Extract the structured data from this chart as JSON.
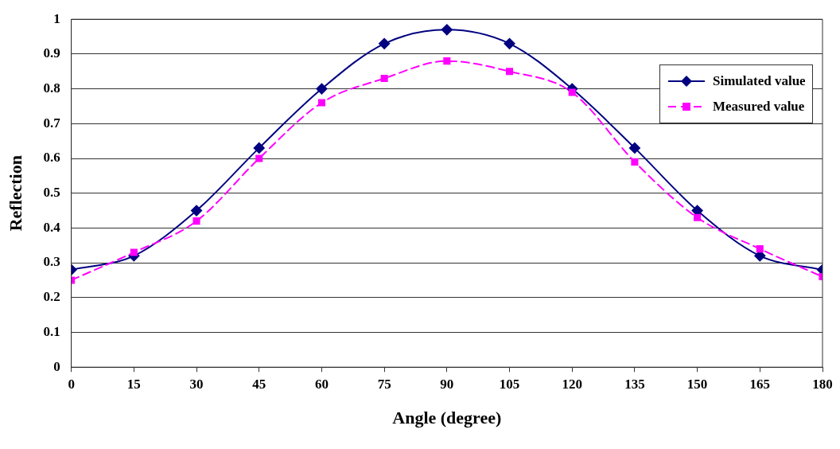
{
  "chart_data": {
    "type": "line",
    "xlabel": "Angle (degree)",
    "ylabel": "Reflection",
    "x": [
      0,
      15,
      30,
      45,
      60,
      75,
      90,
      105,
      120,
      135,
      150,
      165,
      180
    ],
    "xlim": [
      0,
      180
    ],
    "xticks": [
      0,
      15,
      30,
      45,
      60,
      75,
      90,
      105,
      120,
      135,
      150,
      165,
      180
    ],
    "ylim": [
      0,
      1
    ],
    "yticks": [
      0,
      0.1,
      0.2,
      0.3,
      0.4,
      0.5,
      0.6,
      0.7,
      0.8,
      0.9,
      1
    ],
    "grid": "y",
    "legend": "top right",
    "series": [
      {
        "name": "Simulated value",
        "color": "#000080",
        "marker": "diamond",
        "line_style": "solid",
        "values": [
          0.28,
          0.32,
          0.45,
          0.63,
          0.8,
          0.93,
          0.97,
          0.93,
          0.8,
          0.63,
          0.45,
          0.32,
          0.28
        ]
      },
      {
        "name": "Measured value",
        "color": "#ff00ff",
        "marker": "square",
        "line_style": "dashed",
        "values": [
          0.25,
          0.33,
          0.42,
          0.6,
          0.76,
          0.83,
          0.88,
          0.85,
          0.79,
          0.59,
          0.43,
          0.34,
          0.26
        ]
      }
    ]
  }
}
